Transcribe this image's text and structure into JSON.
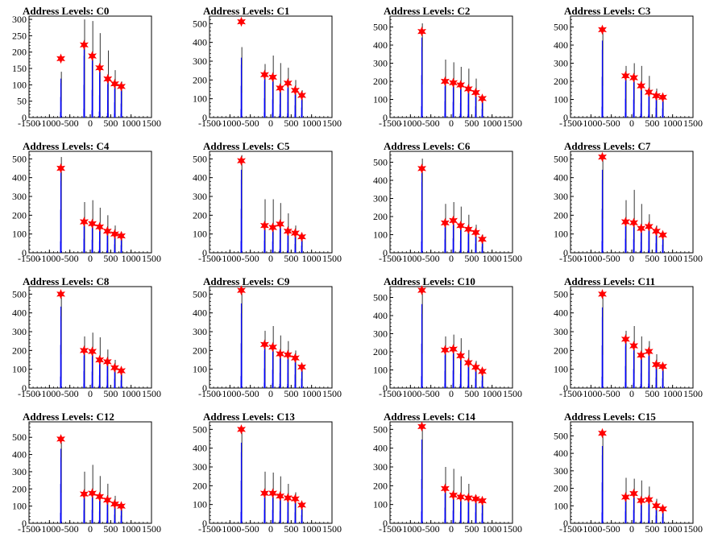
{
  "figure": {
    "background": "#ffffff",
    "colors": {
      "axis": "#000000",
      "histogram": "#0000ff",
      "peak_spike": "#000000",
      "marker": "#ff0000"
    }
  },
  "chart_data": [
    {
      "type": "bar",
      "title": "Address Levels: C0",
      "xlim": [
        -1500,
        1500
      ],
      "ylim": [
        0,
        310
      ],
      "xticks": [
        "-1500",
        "-1000",
        "-500",
        "0",
        "500",
        "1000",
        "1500"
      ],
      "yticks": [
        "0",
        "50",
        "100",
        "150",
        "200",
        "250",
        "300"
      ],
      "peaks": [
        {
          "x": -720,
          "y": 180,
          "spike": 140
        },
        {
          "x": -150,
          "y": 222,
          "spike": 300
        },
        {
          "x": 50,
          "y": 188,
          "spike": 295
        },
        {
          "x": 230,
          "y": 152,
          "spike": 258
        },
        {
          "x": 430,
          "y": 118,
          "spike": 205
        },
        {
          "x": 600,
          "y": 103,
          "spike": 145
        },
        {
          "x": 760,
          "y": 95,
          "spike": 110
        }
      ]
    },
    {
      "type": "bar",
      "title": "Address Levels: C1",
      "xlim": [
        -1500,
        1500
      ],
      "ylim": [
        0,
        540
      ],
      "xticks": [
        "-1500",
        "-1000",
        "-500",
        "0",
        "500",
        "1000",
        "1500"
      ],
      "yticks": [
        "0",
        "100",
        "200",
        "300",
        "400",
        "500"
      ],
      "peaks": [
        {
          "x": -720,
          "y": 510,
          "spike": 375
        },
        {
          "x": -150,
          "y": 228,
          "spike": 285
        },
        {
          "x": 50,
          "y": 215,
          "spike": 330
        },
        {
          "x": 230,
          "y": 157,
          "spike": 290
        },
        {
          "x": 420,
          "y": 183,
          "spike": 265
        },
        {
          "x": 600,
          "y": 145,
          "spike": 200
        },
        {
          "x": 760,
          "y": 118,
          "spike": 145
        }
      ]
    },
    {
      "type": "bar",
      "title": "Address Levels: C2",
      "xlim": [
        -1500,
        1500
      ],
      "ylim": [
        0,
        560
      ],
      "xticks": [
        "-1500",
        "-1000",
        "-500",
        "0",
        "500",
        "1000",
        "1500"
      ],
      "yticks": [
        "0",
        "100",
        "200",
        "300",
        "400",
        "500"
      ],
      "peaks": [
        {
          "x": -720,
          "y": 475,
          "spike": 520
        },
        {
          "x": -150,
          "y": 200,
          "spike": 320
        },
        {
          "x": 50,
          "y": 192,
          "spike": 305
        },
        {
          "x": 230,
          "y": 180,
          "spike": 280
        },
        {
          "x": 420,
          "y": 158,
          "spike": 270
        },
        {
          "x": 600,
          "y": 138,
          "spike": 215
        },
        {
          "x": 760,
          "y": 105,
          "spike": 110
        }
      ]
    },
    {
      "type": "bar",
      "title": "Address Levels: C3",
      "xlim": [
        -1500,
        1500
      ],
      "ylim": [
        0,
        560
      ],
      "xticks": [
        "-1500",
        "-1000",
        "-500",
        "0",
        "500",
        "1000",
        "1500"
      ],
      "yticks": [
        "0",
        "100",
        "200",
        "300",
        "400",
        "500"
      ],
      "peaks": [
        {
          "x": -720,
          "y": 485,
          "spike": 500
        },
        {
          "x": -150,
          "y": 230,
          "spike": 285
        },
        {
          "x": 50,
          "y": 220,
          "spike": 300
        },
        {
          "x": 230,
          "y": 175,
          "spike": 285
        },
        {
          "x": 420,
          "y": 140,
          "spike": 230
        },
        {
          "x": 600,
          "y": 120,
          "spike": 160
        },
        {
          "x": 760,
          "y": 112,
          "spike": 120
        }
      ]
    },
    {
      "type": "bar",
      "title": "Address Levels: C4",
      "xlim": [
        -1500,
        1500
      ],
      "ylim": [
        0,
        540
      ],
      "xticks": [
        "-1500",
        "-1000",
        "-500",
        "0",
        "500",
        "1000",
        "1500"
      ],
      "yticks": [
        "0",
        "100",
        "200",
        "300",
        "400",
        "500"
      ],
      "peaks": [
        {
          "x": -720,
          "y": 450,
          "spike": 510
        },
        {
          "x": -150,
          "y": 165,
          "spike": 270
        },
        {
          "x": 50,
          "y": 155,
          "spike": 280
        },
        {
          "x": 230,
          "y": 138,
          "spike": 240
        },
        {
          "x": 420,
          "y": 115,
          "spike": 200
        },
        {
          "x": 600,
          "y": 100,
          "spike": 145
        },
        {
          "x": 760,
          "y": 90,
          "spike": 110
        }
      ]
    },
    {
      "type": "bar",
      "title": "Address Levels: C5",
      "xlim": [
        -1500,
        1500
      ],
      "ylim": [
        0,
        540
      ],
      "xticks": [
        "-1500",
        "-1000",
        "-500",
        "0",
        "500",
        "1000",
        "1500"
      ],
      "yticks": [
        "0",
        "100",
        "200",
        "300",
        "400",
        "500"
      ],
      "peaks": [
        {
          "x": -720,
          "y": 490,
          "spike": 520
        },
        {
          "x": -150,
          "y": 145,
          "spike": 285
        },
        {
          "x": 50,
          "y": 135,
          "spike": 285
        },
        {
          "x": 230,
          "y": 153,
          "spike": 265
        },
        {
          "x": 420,
          "y": 115,
          "spike": 210
        },
        {
          "x": 600,
          "y": 105,
          "spike": 145
        },
        {
          "x": 760,
          "y": 85,
          "spike": 105
        }
      ]
    },
    {
      "type": "bar",
      "title": "Address Levels: C6",
      "xlim": [
        -1500,
        1500
      ],
      "ylim": [
        0,
        560
      ],
      "xticks": [
        "-1500",
        "-1000",
        "-500",
        "0",
        "500",
        "1000",
        "1500"
      ],
      "yticks": [
        "0",
        "100",
        "200",
        "300",
        "400",
        "500"
      ],
      "peaks": [
        {
          "x": -720,
          "y": 465,
          "spike": 520
        },
        {
          "x": -150,
          "y": 165,
          "spike": 270
        },
        {
          "x": 50,
          "y": 178,
          "spike": 280
        },
        {
          "x": 230,
          "y": 150,
          "spike": 255
        },
        {
          "x": 420,
          "y": 130,
          "spike": 210
        },
        {
          "x": 600,
          "y": 112,
          "spike": 155
        },
        {
          "x": 760,
          "y": 75,
          "spike": 100
        }
      ]
    },
    {
      "type": "bar",
      "title": "Address Levels: C7",
      "xlim": [
        -1500,
        1500
      ],
      "ylim": [
        0,
        540
      ],
      "xticks": [
        "-1500",
        "-1000",
        "-500",
        "0",
        "500",
        "1000",
        "1500"
      ],
      "yticks": [
        "0",
        "100",
        "200",
        "300",
        "400",
        "500"
      ],
      "peaks": [
        {
          "x": -720,
          "y": 510,
          "spike": 520
        },
        {
          "x": -150,
          "y": 165,
          "spike": 280
        },
        {
          "x": 50,
          "y": 160,
          "spike": 335
        },
        {
          "x": 230,
          "y": 130,
          "spike": 260
        },
        {
          "x": 420,
          "y": 140,
          "spike": 205
        },
        {
          "x": 600,
          "y": 115,
          "spike": 145
        },
        {
          "x": 760,
          "y": 95,
          "spike": 110
        }
      ]
    },
    {
      "type": "bar",
      "title": "Address Levels: C8",
      "xlim": [
        -1500,
        1500
      ],
      "ylim": [
        0,
        540
      ],
      "xticks": [
        "-1500",
        "-1000",
        "-500",
        "0",
        "500",
        "1000",
        "1500"
      ],
      "yticks": [
        "0",
        "100",
        "200",
        "300",
        "400",
        "500"
      ],
      "peaks": [
        {
          "x": -720,
          "y": 500,
          "spike": 510
        },
        {
          "x": -150,
          "y": 200,
          "spike": 275
        },
        {
          "x": 50,
          "y": 195,
          "spike": 295
        },
        {
          "x": 230,
          "y": 150,
          "spike": 270
        },
        {
          "x": 420,
          "y": 140,
          "spike": 205
        },
        {
          "x": 600,
          "y": 108,
          "spike": 150
        },
        {
          "x": 760,
          "y": 92,
          "spike": 110
        }
      ]
    },
    {
      "type": "bar",
      "title": "Address Levels: C9",
      "xlim": [
        -1500,
        1500
      ],
      "ylim": [
        0,
        540
      ],
      "xticks": [
        "-1500",
        "-1000",
        "-500",
        "0",
        "500",
        "1000",
        "1500"
      ],
      "yticks": [
        "0",
        "100",
        "200",
        "300",
        "400",
        "500"
      ],
      "peaks": [
        {
          "x": -720,
          "y": 520,
          "spike": 530
        },
        {
          "x": -150,
          "y": 232,
          "spike": 305
        },
        {
          "x": 50,
          "y": 218,
          "spike": 330
        },
        {
          "x": 230,
          "y": 182,
          "spike": 280
        },
        {
          "x": 420,
          "y": 177,
          "spike": 250
        },
        {
          "x": 600,
          "y": 160,
          "spike": 200
        },
        {
          "x": 760,
          "y": 112,
          "spike": 125
        }
      ]
    },
    {
      "type": "bar",
      "title": "Address Levels: C10",
      "xlim": [
        -1500,
        1500
      ],
      "ylim": [
        0,
        560
      ],
      "xticks": [
        "-1500",
        "-1000",
        "-500",
        "0",
        "500",
        "1000",
        "1500"
      ],
      "yticks": [
        "0",
        "100",
        "200",
        "300",
        "400",
        "500"
      ],
      "peaks": [
        {
          "x": -720,
          "y": 540,
          "spike": 545
        },
        {
          "x": -150,
          "y": 210,
          "spike": 285
        },
        {
          "x": 50,
          "y": 215,
          "spike": 295
        },
        {
          "x": 230,
          "y": 178,
          "spike": 275
        },
        {
          "x": 420,
          "y": 140,
          "spike": 210
        },
        {
          "x": 600,
          "y": 115,
          "spike": 150
        },
        {
          "x": 760,
          "y": 92,
          "spike": 110
        }
      ]
    },
    {
      "type": "bar",
      "title": "Address Levels: C11",
      "xlim": [
        -1500,
        1500
      ],
      "ylim": [
        0,
        540
      ],
      "xticks": [
        "-1500",
        "-1000",
        "-500",
        "0",
        "500",
        "1000",
        "1500"
      ],
      "yticks": [
        "0",
        "100",
        "200",
        "300",
        "400",
        "500"
      ],
      "peaks": [
        {
          "x": -720,
          "y": 500,
          "spike": 505
        },
        {
          "x": -150,
          "y": 260,
          "spike": 305
        },
        {
          "x": 50,
          "y": 225,
          "spike": 330
        },
        {
          "x": 230,
          "y": 175,
          "spike": 275
        },
        {
          "x": 420,
          "y": 195,
          "spike": 250
        },
        {
          "x": 600,
          "y": 125,
          "spike": 180
        },
        {
          "x": 760,
          "y": 115,
          "spike": 125
        }
      ]
    },
    {
      "type": "bar",
      "title": "Address Levels: C12",
      "xlim": [
        -1500,
        1500
      ],
      "ylim": [
        0,
        590
      ],
      "xticks": [
        "-1500",
        "-1000",
        "-500",
        "0",
        "500",
        "1000",
        "1500"
      ],
      "yticks": [
        "0",
        "100",
        "200",
        "300",
        "400",
        "500"
      ],
      "peaks": [
        {
          "x": -720,
          "y": 490,
          "spike": 510
        },
        {
          "x": -150,
          "y": 170,
          "spike": 300
        },
        {
          "x": 50,
          "y": 175,
          "spike": 340
        },
        {
          "x": 230,
          "y": 155,
          "spike": 275
        },
        {
          "x": 420,
          "y": 135,
          "spike": 230
        },
        {
          "x": 600,
          "y": 112,
          "spike": 160
        },
        {
          "x": 760,
          "y": 100,
          "spike": 115
        }
      ]
    },
    {
      "type": "bar",
      "title": "Address Levels: C13",
      "xlim": [
        -1500,
        1500
      ],
      "ylim": [
        0,
        540
      ],
      "xticks": [
        "-1500",
        "-1000",
        "-500",
        "0",
        "500",
        "1000",
        "1500"
      ],
      "yticks": [
        "0",
        "100",
        "200",
        "300",
        "400",
        "500"
      ],
      "peaks": [
        {
          "x": -720,
          "y": 500,
          "spike": 505
        },
        {
          "x": -150,
          "y": 160,
          "spike": 275
        },
        {
          "x": 50,
          "y": 160,
          "spike": 270
        },
        {
          "x": 230,
          "y": 145,
          "spike": 250
        },
        {
          "x": 420,
          "y": 135,
          "spike": 210
        },
        {
          "x": 600,
          "y": 130,
          "spike": 165
        },
        {
          "x": 760,
          "y": 97,
          "spike": 110
        }
      ]
    },
    {
      "type": "bar",
      "title": "Address Levels: C14",
      "xlim": [
        -1500,
        1500
      ],
      "ylim": [
        0,
        540
      ],
      "xticks": [
        "-1500",
        "-1000",
        "-500",
        "0",
        "500",
        "1000",
        "1500"
      ],
      "yticks": [
        "0",
        "100",
        "200",
        "300",
        "400",
        "500"
      ],
      "peaks": [
        {
          "x": -720,
          "y": 515,
          "spike": 525
        },
        {
          "x": -150,
          "y": 185,
          "spike": 300
        },
        {
          "x": 50,
          "y": 150,
          "spike": 290
        },
        {
          "x": 230,
          "y": 140,
          "spike": 250
        },
        {
          "x": 420,
          "y": 135,
          "spike": 210
        },
        {
          "x": 600,
          "y": 130,
          "spike": 150
        },
        {
          "x": 760,
          "y": 120,
          "spike": 125
        }
      ]
    },
    {
      "type": "bar",
      "title": "Address Levels: C15",
      "xlim": [
        -1500,
        1500
      ],
      "ylim": [
        0,
        580
      ],
      "xticks": [
        "-1500",
        "-1000",
        "-500",
        "0",
        "500",
        "1000",
        "1500"
      ],
      "yticks": [
        "0",
        "100",
        "200",
        "300",
        "400",
        "500"
      ],
      "peaks": [
        {
          "x": -720,
          "y": 515,
          "spike": 520
        },
        {
          "x": -150,
          "y": 150,
          "spike": 260
        },
        {
          "x": 50,
          "y": 170,
          "spike": 255
        },
        {
          "x": 230,
          "y": 130,
          "spike": 245
        },
        {
          "x": 420,
          "y": 135,
          "spike": 210
        },
        {
          "x": 600,
          "y": 100,
          "spike": 140
        },
        {
          "x": 760,
          "y": 82,
          "spike": 100
        }
      ]
    }
  ]
}
